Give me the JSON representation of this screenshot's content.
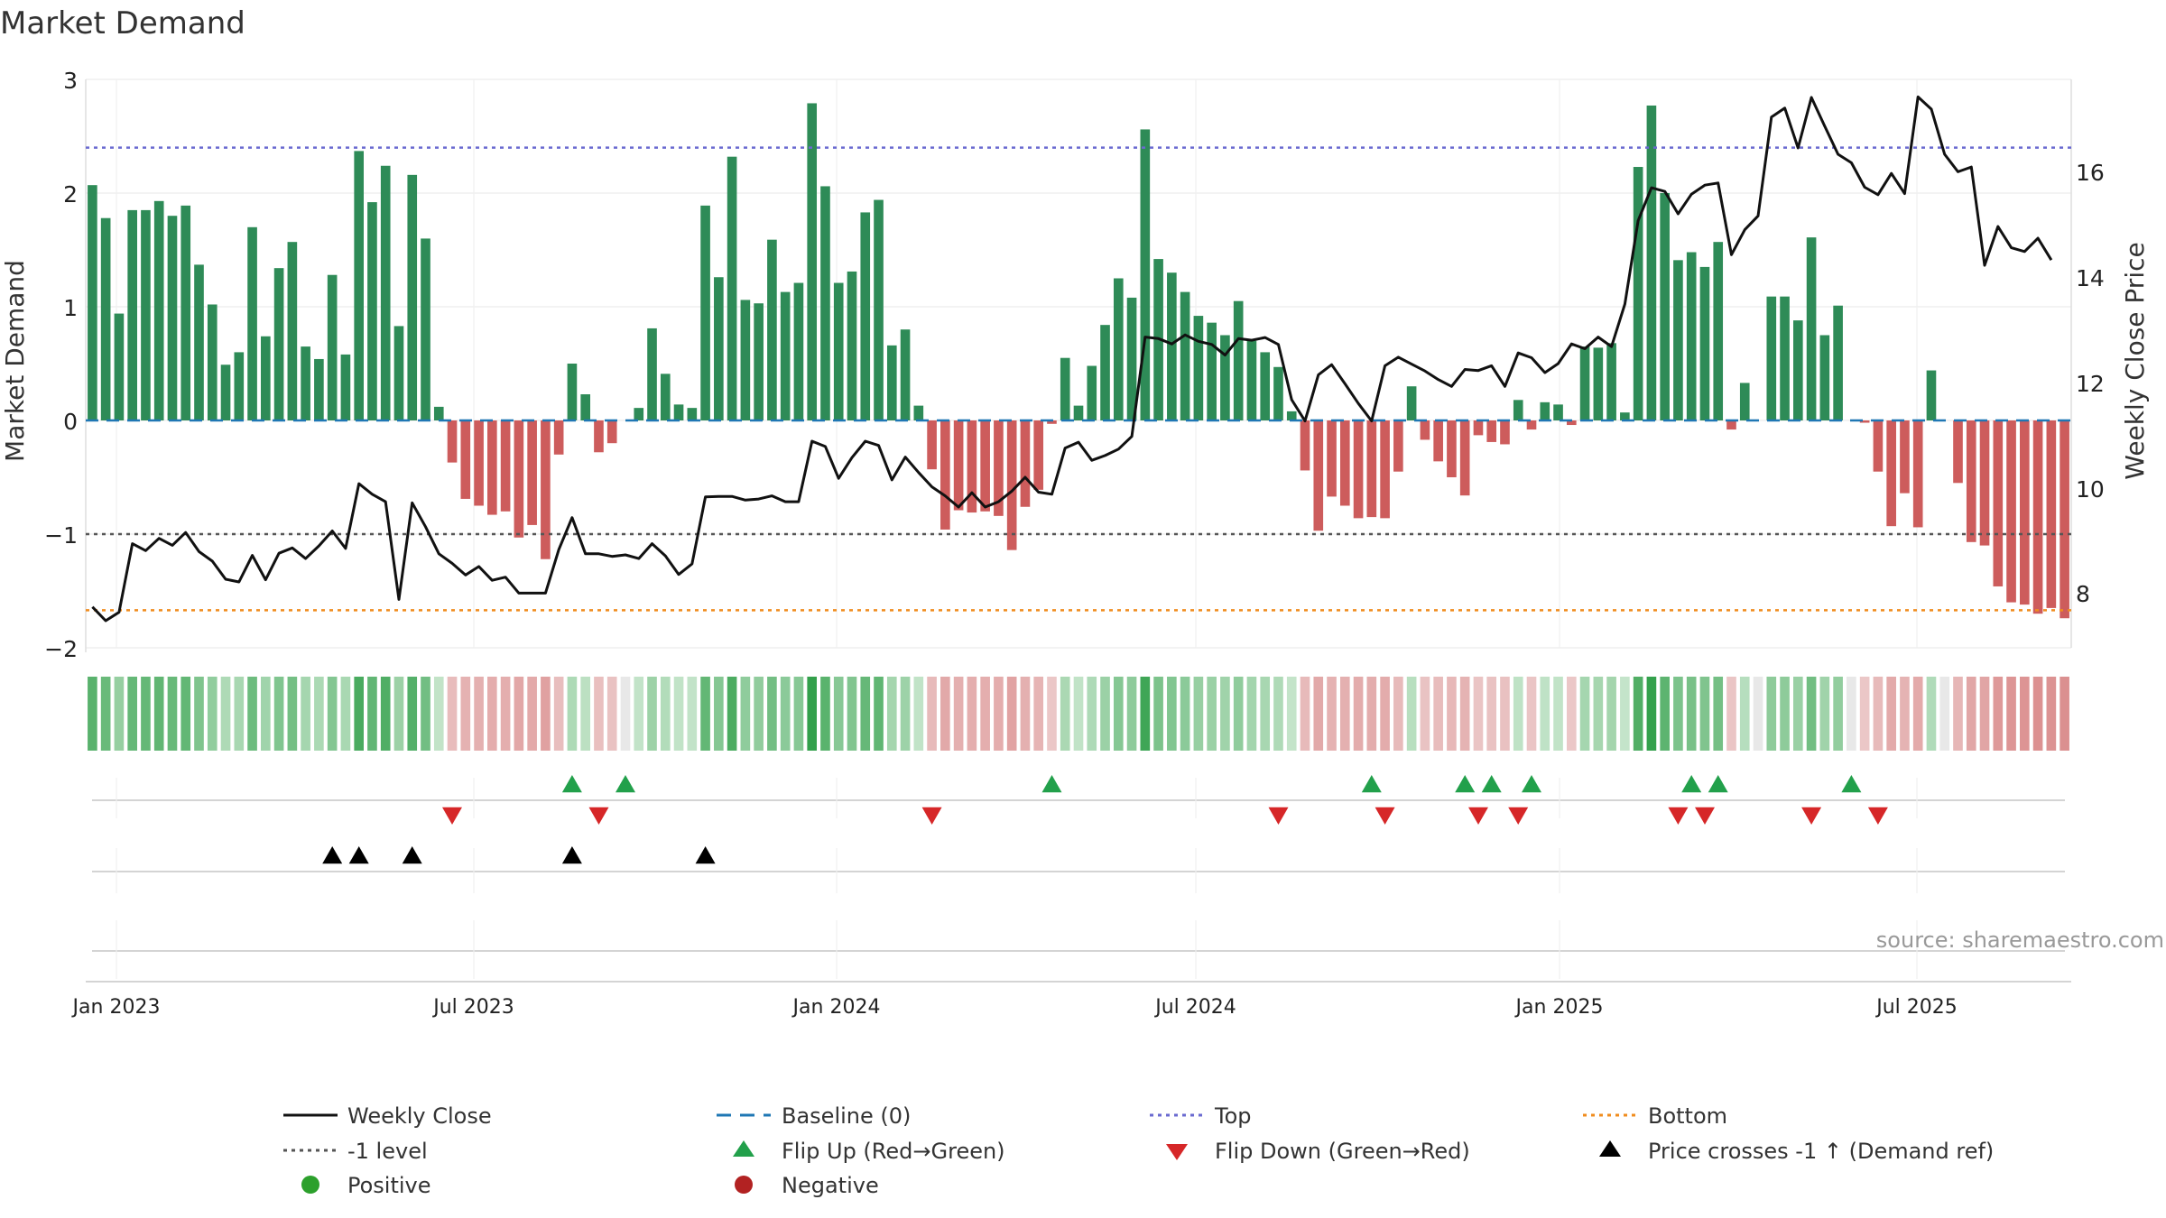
{
  "chart_data": {
    "type": "bar",
    "title": "Market Demand",
    "ylabel": "Market Demand",
    "y2label": "Weekly Close Price",
    "ylim": [
      -2,
      3
    ],
    "y2lim": [
      7,
      17.7
    ],
    "yticks": [
      "3",
      "2",
      "1",
      "0",
      "−1",
      "−2"
    ],
    "y2ticks": [
      "16",
      "14",
      "12",
      "10",
      "8"
    ],
    "xticks": [
      "Jan 2023",
      "Jul 2023",
      "Jan 2024",
      "Jul 2024",
      "Jan 2025",
      "Jul 2025"
    ],
    "levels": {
      "top": 2.4,
      "bottom": -1.67,
      "minus_one": -1,
      "baseline": 0
    },
    "source": "source: sharemaestro.com",
    "legend": [
      {
        "label": "Weekly Close",
        "marker": "line",
        "color": "#111111"
      },
      {
        "label": "Baseline (0)",
        "marker": "dash",
        "color": "#1f77b4"
      },
      {
        "label": "Top",
        "marker": "dot",
        "color": "#6a6ad0"
      },
      {
        "label": "Bottom",
        "marker": "dot",
        "color": "#f08c1e"
      },
      {
        "label": "-1 level",
        "marker": "dot",
        "color": "#555555"
      },
      {
        "label": "Flip Up (Red→Green)",
        "marker": "tri-up",
        "color": "#22a04b"
      },
      {
        "label": "Flip Down (Green→Red)",
        "marker": "tri-down",
        "color": "#d62728"
      },
      {
        "label": "Price crosses -1 ↑ (Demand ref)",
        "marker": "tri-up",
        "color": "#000000"
      },
      {
        "label": "Positive",
        "marker": "circle",
        "color": "#2ca02c"
      },
      {
        "label": "Negative",
        "marker": "circle",
        "color": "#b22222"
      }
    ],
    "series": [
      {
        "name": "Market Demand",
        "values": [
          2.07,
          1.78,
          0.94,
          1.85,
          1.85,
          1.93,
          1.8,
          1.89,
          1.37,
          1.02,
          0.49,
          0.6,
          1.7,
          0.74,
          1.34,
          1.57,
          0.65,
          0.54,
          1.28,
          0.58,
          2.37,
          1.92,
          2.24,
          0.83,
          2.16,
          1.6,
          0.12,
          -0.37,
          -0.69,
          -0.75,
          -0.83,
          -0.8,
          -1.03,
          -0.92,
          -1.22,
          -0.3,
          0.5,
          0.23,
          -0.28,
          -0.2,
          0.0,
          0.11,
          0.81,
          0.41,
          0.14,
          0.11,
          1.89,
          1.26,
          2.32,
          1.06,
          1.03,
          1.59,
          1.13,
          1.21,
          2.79,
          2.06,
          1.21,
          1.31,
          1.83,
          1.94,
          0.66,
          0.8,
          0.13,
          -0.43,
          -0.96,
          -0.79,
          -0.81,
          -0.8,
          -0.84,
          -1.14,
          -0.76,
          -0.61,
          -0.03,
          0.55,
          0.13,
          0.48,
          0.84,
          1.25,
          1.08,
          2.56,
          1.42,
          1.3,
          1.13,
          0.92,
          0.86,
          0.75,
          1.05,
          0.7,
          0.6,
          0.47,
          0.08,
          -0.44,
          -0.97,
          -0.67,
          -0.75,
          -0.86,
          -0.85,
          -0.86,
          -0.45,
          0.3,
          -0.17,
          -0.36,
          -0.5,
          -0.66,
          -0.13,
          -0.19,
          -0.21,
          0.18,
          -0.08,
          0.16,
          0.14,
          -0.04,
          0.65,
          0.64,
          0.68,
          0.07,
          2.23,
          2.77,
          2.0,
          1.41,
          1.48,
          1.35,
          1.57,
          -0.08,
          0.33,
          0.0,
          1.09,
          1.09,
          0.88,
          1.61,
          0.75,
          1.01,
          0.0,
          -0.02,
          -0.45,
          -0.93,
          -0.64,
          -0.94,
          0.44,
          0.0,
          -0.55,
          -1.07,
          -1.1,
          -1.46,
          -1.6,
          -1.62,
          -1.7,
          -1.65,
          -1.74
        ]
      },
      {
        "name": "Weekly Close",
        "values": [
          7.77,
          7.51,
          7.67,
          8.96,
          8.83,
          9.06,
          8.93,
          9.17,
          8.81,
          8.63,
          8.29,
          8.24,
          8.74,
          8.28,
          8.78,
          8.88,
          8.68,
          8.92,
          9.2,
          8.87,
          10.09,
          9.89,
          9.75,
          7.91,
          9.73,
          9.28,
          8.77,
          8.59,
          8.37,
          8.53,
          8.27,
          8.33,
          8.03,
          8.03,
          8.03,
          8.85,
          9.45,
          8.77,
          8.77,
          8.72,
          8.75,
          8.68,
          8.96,
          8.73,
          8.38,
          8.58,
          9.84,
          9.85,
          9.85,
          9.78,
          9.8,
          9.86,
          9.75,
          9.75,
          10.89,
          10.79,
          10.19,
          10.58,
          10.89,
          10.81,
          10.16,
          10.59,
          10.3,
          10.03,
          9.86,
          9.65,
          9.92,
          9.65,
          9.75,
          9.95,
          10.21,
          9.93,
          9.89,
          10.76,
          10.87,
          10.53,
          10.62,
          10.74,
          10.98,
          12.85,
          12.82,
          12.72,
          12.89,
          12.77,
          12.71,
          12.51,
          12.82,
          12.79,
          12.84,
          12.71,
          11.67,
          11.27,
          12.14,
          12.33,
          11.97,
          11.6,
          11.27,
          12.31,
          12.47,
          12.34,
          12.21,
          12.05,
          11.92,
          12.24,
          12.22,
          12.31,
          11.92,
          12.55,
          12.46,
          12.18,
          12.35,
          12.72,
          12.63,
          12.85,
          12.67,
          13.47,
          15.04,
          15.66,
          15.59,
          15.17,
          15.54,
          15.71,
          15.75,
          14.4,
          14.87,
          15.13,
          16.99,
          17.16,
          16.41,
          17.36,
          16.82,
          16.29,
          16.13,
          15.67,
          15.53,
          15.93,
          15.55,
          17.37,
          17.14,
          16.29,
          15.96,
          16.05,
          14.2,
          14.93,
          14.53,
          14.46,
          14.71,
          14.3
        ]
      }
    ],
    "flips_up": [
      36,
      40,
      72,
      96,
      103,
      105,
      108,
      120,
      122,
      132
    ],
    "flips_down": [
      27,
      38,
      63,
      89,
      97,
      104,
      107,
      119,
      121,
      129,
      134
    ],
    "price_cross_up": [
      18,
      20,
      24,
      36,
      46
    ]
  }
}
